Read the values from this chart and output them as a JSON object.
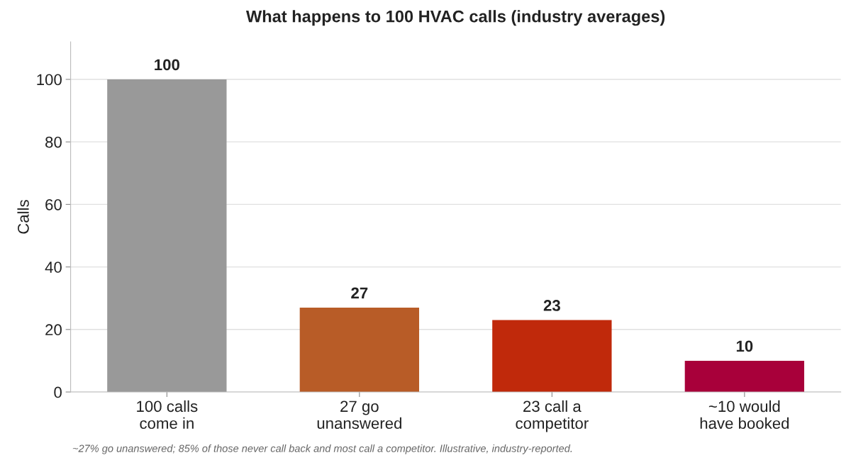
{
  "chart_data": {
    "type": "bar",
    "title": "What happens to 100 HVAC calls (industry averages)",
    "ylabel": "Calls",
    "categories": [
      "100 calls\ncome in",
      "27 go\nunanswered",
      "23 call a\ncompetitor",
      "~10 would\nhave booked"
    ],
    "values": [
      100,
      27,
      23,
      10
    ],
    "colors": [
      "#999999",
      "#b85c27",
      "#c0290b",
      "#a8003a"
    ],
    "ylim": [
      0,
      112
    ],
    "yticks": [
      0,
      20,
      40,
      60,
      80,
      100
    ],
    "grid": "y",
    "data_labels": true,
    "annotations": [
      "~27% go unanswered; 85% of those never call back and most call a competitor. Illustrative, industry-reported."
    ]
  }
}
